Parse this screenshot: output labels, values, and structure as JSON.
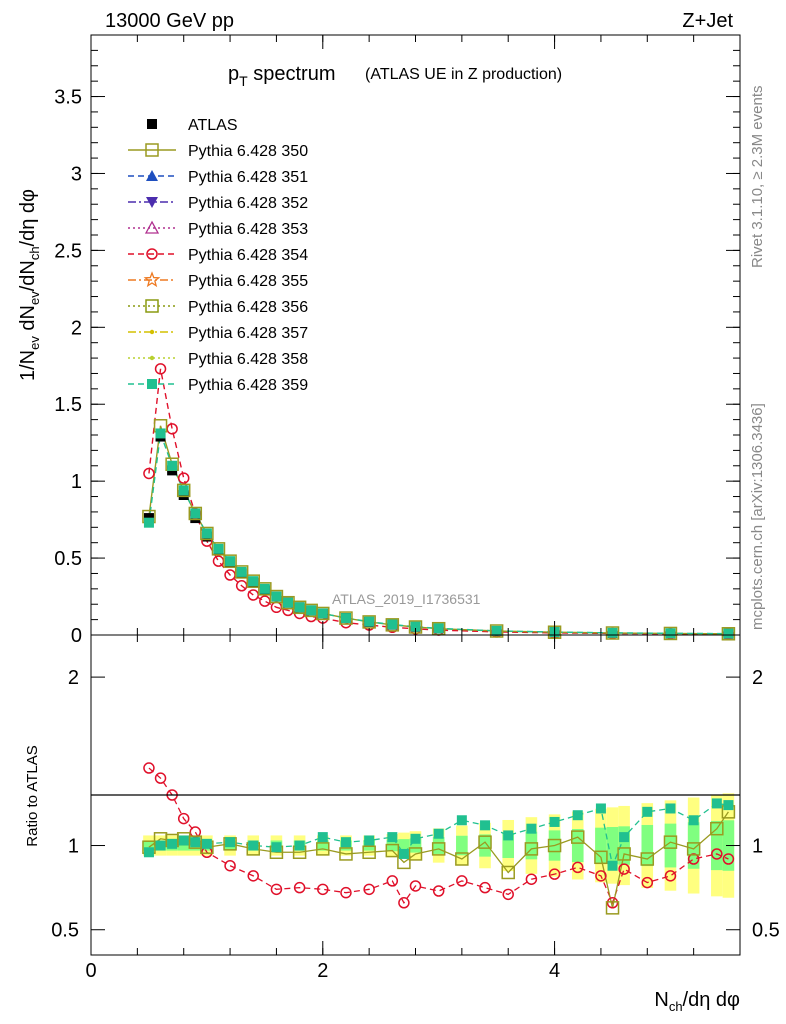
{
  "header": {
    "left": "13000 GeV pp",
    "right": "Z+Jet"
  },
  "plot": {
    "title_main": "p",
    "title_sub": "T",
    "title_rest": " spectrum",
    "title_paren": "(ATLAS UE in Z production)",
    "watermark": "ATLAS_2019_I1736531",
    "side_top": "Rivet 3.1.10, ≥ 2.3M events",
    "side_bottom": "mcplots.cern.ch [arXiv:1306.3436]"
  },
  "axes": {
    "ylabel_main": "1/N_ev dN_ev/dN_ch/dη dφ",
    "ylabel_ratio": "Ratio to ATLAS",
    "xlabel": "N_ch/dη dφ",
    "main_yticks": [
      "0",
      "0.5",
      "1",
      "1.5",
      "2",
      "2.5",
      "3",
      "3.5"
    ],
    "ratio_yticks": [
      "0.5",
      "1",
      "2"
    ],
    "xticks": [
      "0",
      "2",
      "4"
    ]
  },
  "colors": {
    "data": "#000000",
    "band_outer": "#ffff80",
    "band_inner": "#80ff80"
  },
  "legend": [
    {
      "label": "ATLAS",
      "color": "#000000",
      "marker": "filled-square",
      "line": "none"
    },
    {
      "label": "Pythia 6.428 350",
      "color": "#9a9a20",
      "marker": "open-square",
      "line": "solid"
    },
    {
      "label": "Pythia 6.428 351",
      "color": "#1f4fbf",
      "marker": "filled-triangle-up",
      "line": "dashed"
    },
    {
      "label": "Pythia 6.428 352",
      "color": "#4b2dae",
      "marker": "filled-triangle-down",
      "line": "dashdot"
    },
    {
      "label": "Pythia 6.428 353",
      "color": "#b0308f",
      "marker": "open-triangle-up",
      "line": "dotted"
    },
    {
      "label": "Pythia 6.428 354",
      "color": "#e0102a",
      "marker": "open-circle",
      "line": "dashed"
    },
    {
      "label": "Pythia 6.428 355",
      "color": "#ee7a22",
      "marker": "open-star",
      "line": "dashdot"
    },
    {
      "label": "Pythia 6.428 356",
      "color": "#8a9a10",
      "marker": "open-square",
      "line": "dotted"
    },
    {
      "label": "Pythia 6.428 357",
      "color": "#d4c000",
      "marker": "small-dot",
      "line": "dashdot"
    },
    {
      "label": "Pythia 6.428 358",
      "color": "#b8d030",
      "marker": "small-dot",
      "line": "dotted"
    },
    {
      "label": "Pythia 6.428 359",
      "color": "#20c090",
      "marker": "filled-square",
      "line": "dashed"
    }
  ],
  "chart_data": [
    {
      "type": "line",
      "panel": "main",
      "title": "p_T spectrum (ATLAS UE in Z production)",
      "xlabel": "N_ch/dη dφ",
      "ylabel": "1/N_ev dN_ev/dN_ch/dη dφ",
      "xlim": [
        0,
        5.6
      ],
      "ylim": [
        0,
        3.9
      ],
      "x": [
        0.5,
        0.6,
        0.7,
        0.8,
        0.9,
        1.0,
        1.1,
        1.2,
        1.3,
        1.4,
        1.5,
        1.6,
        1.7,
        1.8,
        1.9,
        2.0,
        2.2,
        2.4,
        2.6,
        2.8,
        3.0,
        3.5,
        4.0,
        4.5,
        5.0,
        5.5
      ],
      "series": [
        {
          "name": "ATLAS",
          "values": [
            0.76,
            1.29,
            1.07,
            0.91,
            0.76,
            0.64,
            0.55,
            0.47,
            0.4,
            0.34,
            0.29,
            0.25,
            0.21,
            0.18,
            0.16,
            0.14,
            0.11,
            0.085,
            0.067,
            0.053,
            0.042,
            0.026,
            0.018,
            0.013,
            0.01,
            0.008
          ]
        },
        {
          "name": "Pythia 6.428 354",
          "values": [
            1.05,
            1.73,
            1.34,
            1.02,
            0.79,
            0.61,
            0.48,
            0.39,
            0.32,
            0.26,
            0.22,
            0.18,
            0.16,
            0.14,
            0.12,
            0.11,
            0.08,
            0.065,
            0.05,
            0.04,
            0.032,
            0.02,
            0.014,
            0.01,
            0.008,
            0.007
          ]
        },
        {
          "name": "Pythia 6.428 350",
          "values": [
            0.77,
            1.36,
            1.11,
            0.94,
            0.79,
            0.66,
            0.56,
            0.48,
            0.41,
            0.35,
            0.3,
            0.25,
            0.21,
            0.18,
            0.16,
            0.14,
            0.11,
            0.085,
            0.066,
            0.052,
            0.041,
            0.026,
            0.018,
            0.013,
            0.01,
            0.008
          ]
        },
        {
          "name": "Pythia 6.428 359",
          "values": [
            0.73,
            1.31,
            1.1,
            0.94,
            0.79,
            0.66,
            0.56,
            0.48,
            0.41,
            0.35,
            0.3,
            0.25,
            0.21,
            0.18,
            0.16,
            0.14,
            0.11,
            0.087,
            0.068,
            0.054,
            0.043,
            0.027,
            0.019,
            0.014,
            0.011,
            0.009
          ]
        }
      ]
    },
    {
      "type": "line",
      "panel": "ratio",
      "ylabel": "Ratio to ATLAS",
      "xlabel": "N_ch/dη dφ",
      "xlim": [
        0,
        5.6
      ],
      "ylim": [
        0.35,
        2.25
      ],
      "reference": 1,
      "x": [
        0.5,
        0.6,
        0.7,
        0.8,
        0.9,
        1.0,
        1.2,
        1.4,
        1.6,
        1.8,
        2.0,
        2.2,
        2.4,
        2.6,
        2.7,
        2.8,
        3.0,
        3.2,
        3.4,
        3.6,
        3.8,
        4.0,
        4.2,
        4.4,
        4.5,
        4.6,
        4.8,
        5.0,
        5.2,
        5.4,
        5.5
      ],
      "series": [
        {
          "name": "Pythia 6.428 354",
          "values": [
            1.46,
            1.4,
            1.3,
            1.16,
            1.08,
            0.96,
            0.88,
            0.82,
            0.74,
            0.75,
            0.74,
            0.72,
            0.74,
            0.79,
            0.66,
            0.76,
            0.73,
            0.79,
            0.75,
            0.71,
            0.8,
            0.83,
            0.87,
            0.82,
            0.66,
            0.86,
            0.78,
            0.82,
            0.92,
            0.95,
            0.92
          ]
        },
        {
          "name": "Pythia 6.428 350",
          "values": [
            0.99,
            1.04,
            1.03,
            1.04,
            1.02,
            0.99,
            1.01,
            0.98,
            0.96,
            0.96,
            0.98,
            0.95,
            0.96,
            0.97,
            0.9,
            0.95,
            0.98,
            0.92,
            1.02,
            0.84,
            0.98,
            1.0,
            1.05,
            0.93,
            0.63,
            0.95,
            0.92,
            1.02,
            0.98,
            1.1,
            1.2
          ]
        },
        {
          "name": "Pythia 6.428 359",
          "values": [
            0.96,
            1.0,
            1.01,
            1.03,
            1.02,
            1.01,
            1.02,
            1.0,
            0.99,
            1.0,
            1.05,
            1.02,
            1.03,
            1.05,
            0.95,
            1.04,
            1.07,
            1.15,
            1.12,
            1.06,
            1.1,
            1.14,
            1.18,
            1.22,
            0.88,
            1.05,
            1.2,
            1.22,
            1.15,
            1.25,
            1.24
          ]
        }
      ]
    }
  ]
}
